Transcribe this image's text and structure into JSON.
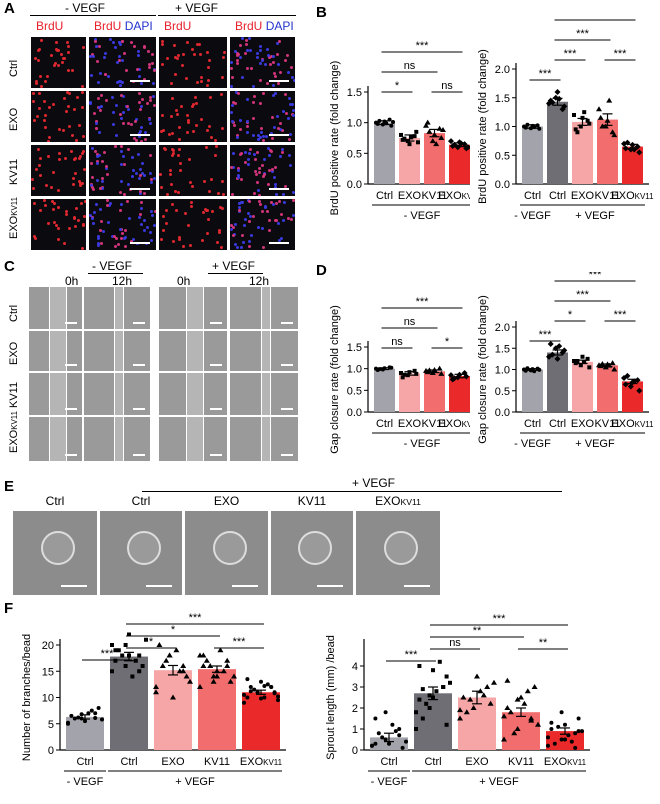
{
  "panels": {
    "A": {
      "label": "A",
      "conditions": [
        "- VEGF",
        "+ VEGF"
      ],
      "column_labels": [
        {
          "parts": [
            {
              "text": "BrdU",
              "color": "#e8202a"
            }
          ]
        },
        {
          "parts": [
            {
              "text": "BrdU",
              "color": "#e8202a"
            },
            {
              "text": " ",
              "color": "#000000"
            },
            {
              "text": "DAPI",
              "color": "#2233cc"
            }
          ]
        },
        {
          "parts": [
            {
              "text": "BrdU",
              "color": "#e8202a"
            }
          ]
        },
        {
          "parts": [
            {
              "text": "BrdU",
              "color": "#e8202a"
            },
            {
              "text": " ",
              "color": "#000000"
            },
            {
              "text": "DAPI",
              "color": "#2233cc"
            }
          ]
        }
      ],
      "row_labels": [
        "Ctrl",
        "EXO",
        "KV11",
        "EXOKV11"
      ]
    },
    "B": {
      "label": "B"
    },
    "C": {
      "label": "C",
      "conditions": [
        "- VEGF",
        "+ VEGF"
      ],
      "time_labels": [
        "0h",
        "12h",
        "0h",
        "12h"
      ],
      "row_labels": [
        "Ctrl",
        "EXO",
        "KV11",
        "EXOKV11"
      ]
    },
    "D": {
      "label": "D"
    },
    "E": {
      "label": "E",
      "condition": "+ VEGF",
      "labels": [
        "Ctrl",
        "Ctrl",
        "EXO",
        "KV11",
        "EXOKV11"
      ]
    },
    "F": {
      "label": "F"
    }
  },
  "chart_data": [
    {
      "id": "B-left",
      "type": "bar",
      "ylabel": "BrdU positive rate (fold change)",
      "ylim": [
        0,
        1.5
      ],
      "yticks": [
        "0.0",
        "0.5",
        "1.0",
        "1.5"
      ],
      "categories": [
        "Ctrl",
        "EXO",
        "KV11",
        "EXOKV11"
      ],
      "group_labels": [
        {
          "text": "- VEGF",
          "from": 0,
          "to": 3
        }
      ],
      "values": [
        1.0,
        0.75,
        0.83,
        0.64
      ],
      "errors": [
        0.03,
        0.05,
        0.06,
        0.03
      ],
      "colors": [
        "#a3a3ab",
        "#f6a6a6",
        "#f26e6e",
        "#ea2a2a"
      ],
      "markers": [
        "circle",
        "square",
        "triangle",
        "diamond"
      ],
      "points": [
        [
          1.0,
          0.97,
          1.05,
          0.98,
          1.02,
          0.95,
          1.03,
          0.99,
          1.01
        ],
        [
          0.8,
          0.7,
          0.78,
          0.72,
          0.65,
          0.85,
          0.74,
          0.76,
          0.68
        ],
        [
          0.95,
          0.7,
          0.9,
          1.0,
          0.8,
          0.75,
          0.85,
          0.65,
          0.88
        ],
        [
          0.7,
          0.6,
          0.65,
          0.62,
          0.68,
          0.58,
          0.64,
          0.66,
          0.6
        ]
      ],
      "significance": [
        {
          "from": 0,
          "to": 1,
          "label": "*",
          "level": 0
        },
        {
          "from": 2,
          "to": 3,
          "label": "ns",
          "level": 0
        },
        {
          "from": 0,
          "to": 2,
          "label": "ns",
          "level": 1
        },
        {
          "from": 0,
          "to": 3,
          "label": "***",
          "level": 2
        }
      ]
    },
    {
      "id": "B-right",
      "type": "bar",
      "ylabel": "BrdU positive rate (fold change)",
      "ylim": [
        0,
        2.0
      ],
      "yticks": [
        "0.0",
        "0.5",
        "1.0",
        "1.5",
        "2.0"
      ],
      "categories": [
        "Ctrl",
        "Ctrl",
        "EXO",
        "KV11",
        "EXOKV11"
      ],
      "group_labels": [
        {
          "text": "- VEGF",
          "from": 0,
          "to": 0
        },
        {
          "text": "+ VEGF",
          "from": 1,
          "to": 4
        }
      ],
      "values": [
        1.0,
        1.43,
        1.08,
        1.12,
        0.65
      ],
      "errors": [
        0.03,
        0.06,
        0.06,
        0.1,
        0.04
      ],
      "colors": [
        "#a3a3ab",
        "#6e6e74",
        "#f6a6a6",
        "#f26e6e",
        "#ea2a2a"
      ],
      "markers": [
        "circle",
        "diamond",
        "square",
        "triangle",
        "diamond"
      ],
      "points": [
        [
          1.0,
          0.97,
          1.02,
          0.98,
          1.01,
          0.96,
          1.03,
          0.99
        ],
        [
          1.4,
          1.5,
          1.3,
          1.45,
          1.6,
          1.35,
          1.42,
          1.48
        ],
        [
          1.2,
          1.0,
          1.1,
          0.95,
          1.15,
          1.05,
          0.9,
          1.25
        ],
        [
          1.3,
          1.0,
          0.9,
          1.15,
          1.1,
          0.85,
          1.0,
          1.45
        ],
        [
          0.7,
          0.6,
          0.65,
          0.62,
          0.68,
          0.55,
          0.72,
          0.6
        ]
      ],
      "significance": [
        {
          "from": 0,
          "to": 1,
          "label": "***",
          "level": 0
        },
        {
          "from": 1,
          "to": 2,
          "label": "***",
          "level": 1
        },
        {
          "from": 3,
          "to": 4,
          "label": "***",
          "level": 1
        },
        {
          "from": 1,
          "to": 3,
          "label": "***",
          "level": 2
        },
        {
          "from": 1,
          "to": 4,
          "label": "***",
          "level": 3
        }
      ]
    },
    {
      "id": "D-left",
      "type": "bar",
      "ylabel": "Gap closure rate (fold change)",
      "ylim": [
        0,
        1.5
      ],
      "yticks": [
        "0.0",
        "0.5",
        "1.0",
        "1.5"
      ],
      "categories": [
        "Ctrl",
        "EXO",
        "KV11",
        "EXOKV11"
      ],
      "group_labels": [
        {
          "text": "- VEGF",
          "from": 0,
          "to": 3
        }
      ],
      "values": [
        1.0,
        0.89,
        0.94,
        0.83
      ],
      "errors": [
        0.02,
        0.04,
        0.03,
        0.04
      ],
      "colors": [
        "#a3a3ab",
        "#f6a6a6",
        "#f26e6e",
        "#ea2a2a"
      ],
      "markers": [
        "circle",
        "square",
        "triangle",
        "diamond"
      ],
      "points": [
        [
          1.0,
          0.98,
          1.03,
          0.97,
          1.01,
          1.02,
          0.99
        ],
        [
          0.9,
          0.85,
          0.95,
          0.8,
          0.92,
          0.88,
          0.86
        ],
        [
          0.95,
          0.9,
          1.0,
          0.92,
          0.97,
          0.88,
          0.96
        ],
        [
          0.85,
          0.8,
          0.9,
          0.75,
          0.86,
          0.82,
          0.78
        ]
      ],
      "significance": [
        {
          "from": 0,
          "to": 1,
          "label": "ns",
          "level": 0
        },
        {
          "from": 2,
          "to": 3,
          "label": "*",
          "level": 0
        },
        {
          "from": 0,
          "to": 2,
          "label": "ns",
          "level": 1
        },
        {
          "from": 0,
          "to": 3,
          "label": "***",
          "level": 2
        }
      ]
    },
    {
      "id": "D-right",
      "type": "bar",
      "ylabel": "Gap closure rate (fold change)",
      "ylim": [
        0,
        2.0
      ],
      "yticks": [
        "0.0",
        "0.5",
        "1.0",
        "1.5",
        "2.0"
      ],
      "categories": [
        "Ctrl",
        "Ctrl",
        "EXO",
        "KV11",
        "EXOKV11"
      ],
      "group_labels": [
        {
          "text": "- VEGF",
          "from": 0,
          "to": 0
        },
        {
          "text": "+ VEGF",
          "from": 1,
          "to": 4
        }
      ],
      "values": [
        1.0,
        1.4,
        1.18,
        1.1,
        0.72
      ],
      "errors": [
        0.02,
        0.06,
        0.04,
        0.03,
        0.05
      ],
      "colors": [
        "#a3a3ab",
        "#6e6e74",
        "#f6a6a6",
        "#f26e6e",
        "#ea2a2a"
      ],
      "markers": [
        "circle",
        "diamond",
        "square",
        "triangle",
        "diamond"
      ],
      "points": [
        [
          1.0,
          0.98,
          1.02,
          0.97,
          1.01,
          0.99,
          1.03,
          0.96
        ],
        [
          1.3,
          1.5,
          1.4,
          1.6,
          1.25,
          1.45,
          1.35,
          1.55
        ],
        [
          1.2,
          1.1,
          1.25,
          1.15,
          1.3,
          1.05,
          1.2,
          1.18
        ],
        [
          1.1,
          1.05,
          1.15,
          1.08,
          1.12,
          1.0,
          1.13,
          1.09
        ],
        [
          0.8,
          0.6,
          0.75,
          0.65,
          0.7,
          0.5,
          0.85,
          0.72
        ]
      ],
      "significance": [
        {
          "from": 0,
          "to": 1,
          "label": "***",
          "level": 0
        },
        {
          "from": 1,
          "to": 2,
          "label": "*",
          "level": 1
        },
        {
          "from": 3,
          "to": 4,
          "label": "***",
          "level": 1
        },
        {
          "from": 1,
          "to": 3,
          "label": "***",
          "level": 2
        },
        {
          "from": 1,
          "to": 4,
          "label": "***",
          "level": 3
        }
      ]
    },
    {
      "id": "F-left",
      "type": "bar",
      "ylabel": "Number of branches/bead",
      "ylim": [
        0,
        20
      ],
      "yticks": [
        "0",
        "5",
        "10",
        "15",
        "20"
      ],
      "categories": [
        "Ctrl",
        "Ctrl",
        "EXO",
        "KV11",
        "EXOKV11"
      ],
      "group_labels": [
        {
          "text": "- VEGF",
          "from": 0,
          "to": 0
        },
        {
          "text": "+ VEGF",
          "from": 1,
          "to": 4
        }
      ],
      "values": [
        6.3,
        17.8,
        15.2,
        15.4,
        11.0
      ],
      "errors": [
        0.4,
        0.8,
        0.9,
        0.6,
        0.4
      ],
      "colors": [
        "#a3a3ab",
        "#6e6e74",
        "#f6a6a6",
        "#f26e6e",
        "#ea2a2a"
      ],
      "markers": [
        "circle",
        "square",
        "triangle",
        "triangle",
        "circle"
      ],
      "points": [
        [
          5,
          6,
          7,
          6.5,
          5.5,
          8,
          6,
          7,
          5.8,
          6.2,
          7.5,
          5.2,
          6.8,
          6.1
        ],
        [
          15,
          20,
          18,
          17,
          22,
          16,
          19,
          14,
          21,
          18,
          17,
          20,
          16,
          15,
          19,
          18
        ],
        [
          12,
          18,
          15,
          20,
          10,
          14,
          16,
          19,
          13,
          17,
          15,
          11,
          18,
          16
        ],
        [
          12,
          14,
          16,
          18,
          15,
          13,
          17,
          19,
          14,
          16,
          15,
          18,
          13,
          17,
          16,
          14
        ],
        [
          9,
          11,
          12,
          10,
          13,
          11,
          12,
          10,
          9.5,
          11.5,
          12.5,
          10.5,
          11,
          12,
          13.5,
          9.8,
          10.8,
          11.2,
          12.2,
          10.2
        ]
      ],
      "significance": [
        {
          "from": 0,
          "to": 1,
          "label": "***",
          "level": 0
        },
        {
          "from": 1,
          "to": 2,
          "label": "*",
          "level": 1
        },
        {
          "from": 3,
          "to": 4,
          "label": "***",
          "level": 1
        },
        {
          "from": 1,
          "to": 3,
          "label": "*",
          "level": 2
        },
        {
          "from": 1,
          "to": 4,
          "label": "***",
          "level": 3
        }
      ]
    },
    {
      "id": "F-right",
      "type": "bar",
      "ylabel": "Sprout length (mm) /bead",
      "ylim": [
        0,
        5
      ],
      "yticks": [
        "0",
        "1",
        "2",
        "3",
        "4"
      ],
      "categories": [
        "Ctrl",
        "Ctrl",
        "EXO",
        "KV11",
        "EXOKV11"
      ],
      "group_labels": [
        {
          "text": "- VEGF",
          "from": 0,
          "to": 0
        },
        {
          "text": "+ VEGF",
          "from": 1,
          "to": 4
        }
      ],
      "values": [
        0.6,
        2.7,
        2.5,
        1.8,
        0.9
      ],
      "errors": [
        0.2,
        0.3,
        0.3,
        0.2,
        0.15
      ],
      "colors": [
        "#a3a3ab",
        "#6e6e74",
        "#f6a6a6",
        "#f26e6e",
        "#ea2a2a"
      ],
      "markers": [
        "circle",
        "square",
        "triangle",
        "triangle",
        "circle"
      ],
      "points": [
        [
          0.2,
          0.5,
          1.0,
          1.5,
          0.3,
          0.1,
          0.8,
          1.2,
          0.4,
          0.6,
          0.9,
          0.2,
          1.8,
          0.7,
          0.3
        ],
        [
          1.0,
          2.0,
          3.0,
          4.0,
          2.5,
          3.5,
          1.5,
          2.8,
          3.2,
          2.2,
          4.2,
          1.8,
          2.6,
          3.0,
          2.4,
          3.8,
          1.2,
          2.9
        ],
        [
          1.5,
          2.0,
          3.0,
          2.5,
          3.5,
          2.2,
          1.8,
          2.8,
          3.2,
          2.4,
          2.6,
          1.9
        ],
        [
          0.5,
          1.0,
          1.5,
          2.0,
          2.5,
          3.0,
          1.8,
          2.2,
          1.2,
          0.8,
          2.8,
          1.6,
          2.4,
          1.4,
          3.3
        ],
        [
          0.2,
          0.5,
          0.8,
          1.0,
          1.2,
          1.5,
          0.3,
          0.7,
          0.9,
          1.1,
          0.4,
          0.6,
          1.8,
          0.1,
          1.3,
          0.5,
          0.9
        ]
      ],
      "significance": [
        {
          "from": 0,
          "to": 1,
          "label": "***",
          "level": 0
        },
        {
          "from": 1,
          "to": 2,
          "label": "ns",
          "level": 1
        },
        {
          "from": 3,
          "to": 4,
          "label": "**",
          "level": 1
        },
        {
          "from": 1,
          "to": 3,
          "label": "**",
          "level": 2
        },
        {
          "from": 1,
          "to": 4,
          "label": "***",
          "level": 3
        }
      ]
    }
  ]
}
